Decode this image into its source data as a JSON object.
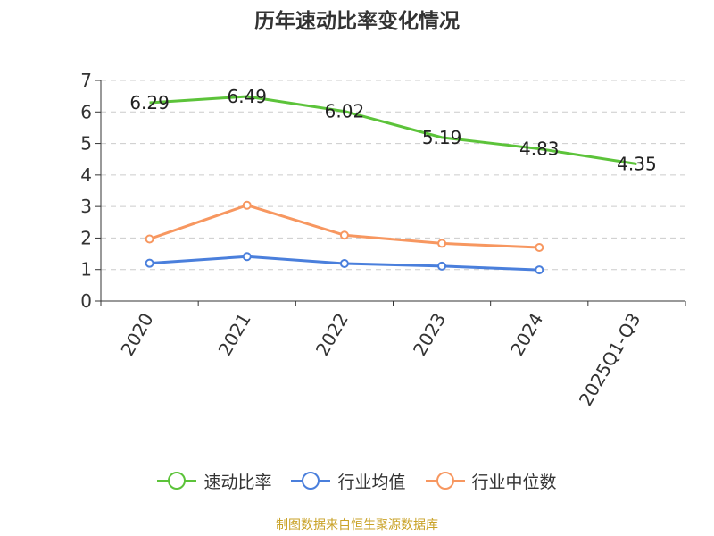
{
  "chart_data": {
    "type": "line",
    "title": "历年速动比率变化情况",
    "categories": [
      "2020",
      "2021",
      "2022",
      "2023",
      "2024",
      "2025Q1-Q3"
    ],
    "series": [
      {
        "name": "速动比率",
        "color": "#5cc33a",
        "values": [
          6.29,
          6.49,
          6.02,
          5.19,
          4.83,
          4.35
        ],
        "data_labels": true
      },
      {
        "name": "行业均值",
        "color": "#4a7fdc",
        "values": [
          1.2,
          1.41,
          1.19,
          1.11,
          0.99,
          null
        ],
        "data_labels": false
      },
      {
        "name": "行业中位数",
        "color": "#f79760",
        "values": [
          1.97,
          3.04,
          2.09,
          1.83,
          1.7,
          null
        ],
        "data_labels": false
      }
    ],
    "yticks": [
      0,
      1,
      2,
      3,
      4,
      5,
      6,
      7
    ],
    "ylim": [
      0,
      7
    ],
    "grid": true,
    "legend_position": "bottom"
  },
  "source": "制图数据来自恒生聚源数据库"
}
